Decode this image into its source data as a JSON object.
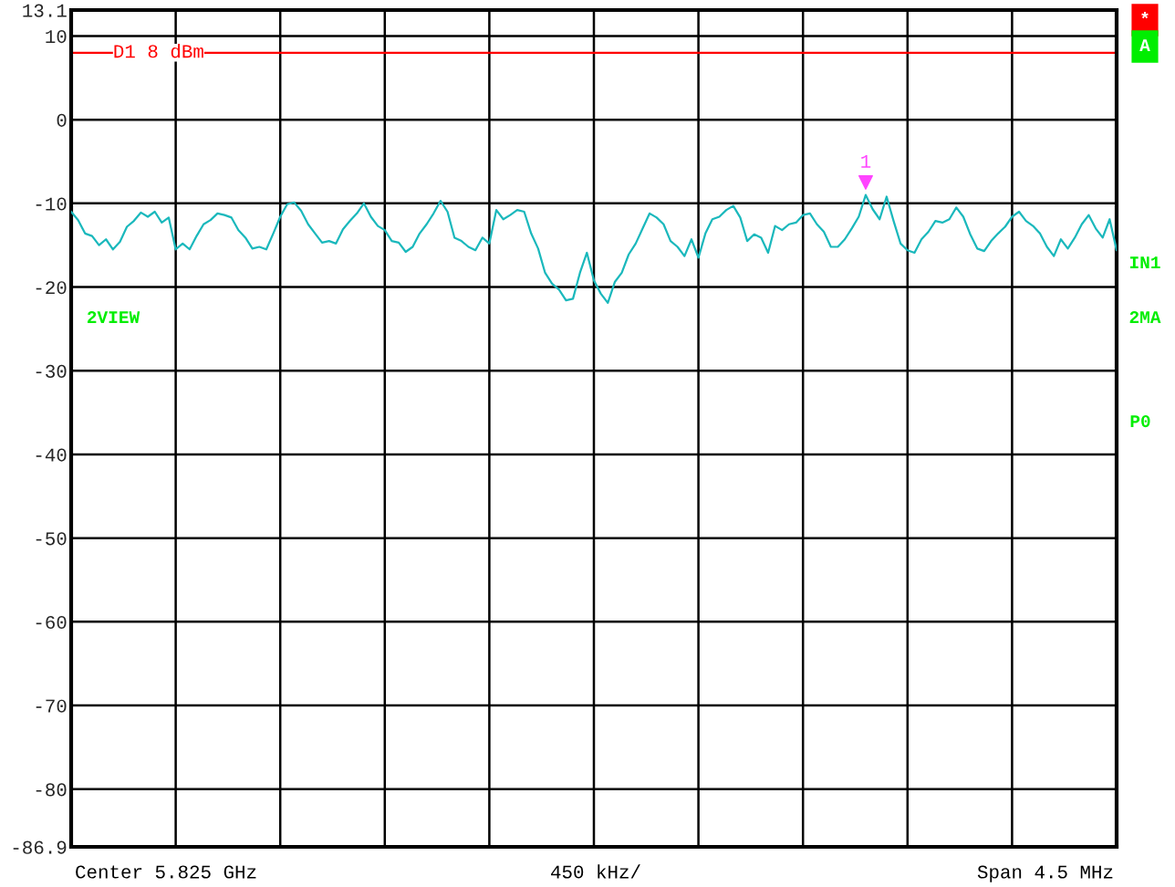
{
  "chart_data": {
    "type": "line",
    "categories": [
      null,
      null,
      null,
      null,
      null,
      null,
      null,
      null,
      null,
      null,
      null,
      null,
      null,
      null,
      null,
      null,
      null,
      null,
      null,
      null,
      null,
      null,
      null,
      null,
      null,
      null,
      null,
      null,
      null,
      null,
      null,
      null,
      null,
      null,
      null,
      null,
      null,
      null,
      null,
      null,
      null,
      null,
      null,
      null,
      null,
      null,
      null,
      null,
      null,
      null,
      null,
      null,
      null,
      null,
      null,
      null,
      null,
      null,
      null,
      null,
      null,
      null,
      null,
      null,
      null,
      null,
      null,
      null,
      null,
      null,
      null,
      null,
      null,
      null,
      null,
      null,
      null,
      null,
      null,
      null,
      null,
      null,
      null,
      null,
      null,
      null,
      null,
      null,
      null,
      null,
      null,
      null,
      null,
      null,
      null,
      null,
      null,
      null,
      null,
      null,
      null,
      null,
      null,
      null,
      null,
      null,
      null,
      null,
      null,
      null,
      null,
      null,
      null,
      null,
      null,
      null,
      null,
      null,
      null,
      null,
      null,
      null,
      null,
      null,
      null,
      null,
      null,
      null,
      null,
      null,
      null,
      null,
      null,
      null,
      null,
      null,
      null,
      null,
      null,
      null,
      null,
      null,
      null,
      null,
      null,
      null,
      null,
      null,
      null,
      null,
      null
    ],
    "ylim": [
      -86.9,
      13.1
    ],
    "yticks": [
      13.1,
      10,
      0,
      -10,
      -20,
      -30,
      -40,
      -50,
      -60,
      -70,
      -80,
      -86.9
    ],
    "grid": true,
    "tick_labels": "y",
    "line_style": "solid",
    "ref_lines": [
      {
        "axis": "y",
        "value": 8,
        "label": "D1 8 dBm",
        "color": "#ff0000"
      }
    ],
    "annotations": [
      {
        "text": "1",
        "y": -9.0
      },
      "*",
      "A",
      "IN1",
      "2MA",
      "P0",
      "2VIEW",
      "Center 5.825 GHz",
      "450 kHz/",
      "Span 4.5 MHz"
    ],
    "series": [
      {
        "color": "#1ab8bc",
        "values": [
          -11.0,
          -12.0,
          -13.6,
          -13.9,
          -15.0,
          -14.3,
          -15.5,
          -14.6,
          -12.8,
          -12.1,
          -11.1,
          -11.6,
          -11.0,
          -12.3,
          -11.7,
          -15.5,
          -14.8,
          -15.5,
          -13.9,
          -12.5,
          -12.0,
          -11.2,
          -11.4,
          -11.7,
          -13.2,
          -14.1,
          -15.4,
          -15.2,
          -15.5,
          -13.6,
          -11.6,
          -10.1,
          -9.9,
          -10.9,
          -12.5,
          -13.6,
          -14.7,
          -14.5,
          -14.8,
          -13.1,
          -12.1,
          -11.2,
          -10.0,
          -11.6,
          -12.7,
          -13.2,
          -14.5,
          -14.7,
          -15.8,
          -15.2,
          -13.6,
          -12.5,
          -11.2,
          -9.7,
          -11.0,
          -14.1,
          -14.5,
          -15.2,
          -15.6,
          -14.1,
          -14.8,
          -10.8,
          -11.9,
          -11.4,
          -10.8,
          -11.0,
          -13.6,
          -15.4,
          -18.3,
          -19.6,
          -20.3,
          -21.6,
          -21.4,
          -18.3,
          -15.9,
          -19.2,
          -20.8,
          -21.9,
          -19.4,
          -18.3,
          -16.1,
          -14.8,
          -13.0,
          -11.2,
          -11.7,
          -12.5,
          -14.5,
          -15.2,
          -16.3,
          -14.3,
          -16.5,
          -13.6,
          -11.9,
          -11.6,
          -10.8,
          -10.3,
          -11.7,
          -14.5,
          -13.7,
          -14.1,
          -15.9,
          -12.7,
          -13.2,
          -12.5,
          -12.3,
          -11.4,
          -11.2,
          -12.5,
          -13.4,
          -15.2,
          -15.2,
          -14.3,
          -13.0,
          -11.6,
          -9.0,
          -10.7,
          -11.9,
          -9.2,
          -12.1,
          -14.8,
          -15.6,
          -15.9,
          -14.3,
          -13.4,
          -12.1,
          -12.3,
          -11.9,
          -10.5,
          -11.6,
          -13.7,
          -15.4,
          -15.7,
          -14.5,
          -13.6,
          -12.8,
          -11.6,
          -11.0,
          -12.1,
          -12.7,
          -13.6,
          -15.2,
          -16.3,
          -14.3,
          -15.4,
          -14.1,
          -12.5,
          -11.4,
          -13.0,
          -14.1,
          -11.9,
          -15.6
        ]
      }
    ]
  }
}
